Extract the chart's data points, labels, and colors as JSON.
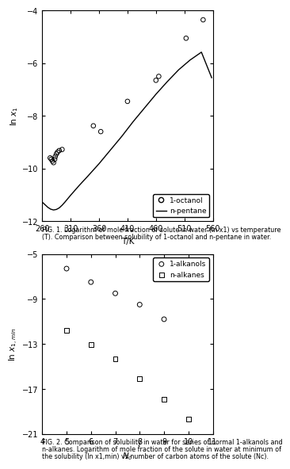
{
  "fig1": {
    "xlabel": "T/K",
    "ylabel": "ln x1",
    "xlim": [
      260,
      560
    ],
    "ylim": [
      -12,
      -4
    ],
    "xticks": [
      260,
      310,
      360,
      410,
      460,
      510,
      560
    ],
    "yticks": [
      -12,
      -10,
      -8,
      -6,
      -4
    ],
    "octanol_T": [
      274,
      276,
      278,
      280,
      282,
      283,
      285,
      287,
      290,
      295,
      350,
      363,
      410,
      460,
      465,
      513,
      543
    ],
    "octanol_lnx": [
      -9.6,
      -9.65,
      -9.72,
      -9.78,
      -9.65,
      -9.55,
      -9.45,
      -9.38,
      -9.32,
      -9.28,
      -8.38,
      -8.6,
      -7.45,
      -6.65,
      -6.5,
      -5.05,
      -4.35
    ],
    "pentane_T": [
      260,
      270,
      275,
      280,
      285,
      290,
      295,
      300,
      310,
      325,
      340,
      360,
      380,
      400,
      420,
      440,
      460,
      480,
      500,
      520,
      540,
      558
    ],
    "pentane_lnx": [
      -11.28,
      -11.48,
      -11.55,
      -11.58,
      -11.56,
      -11.5,
      -11.4,
      -11.28,
      -11.02,
      -10.65,
      -10.3,
      -9.82,
      -9.3,
      -8.78,
      -8.22,
      -7.7,
      -7.18,
      -6.7,
      -6.25,
      -5.88,
      -5.58,
      -6.55
    ],
    "legend_octanol": "1-octanol",
    "legend_pentane": "n-pentane",
    "caption1": "FIG. 1. Logarithm of mole fraction of solute in water (ln x1) vs temperature",
    "caption2": "(T). Comparison between solubility of 1-octanol and n-pentane in water."
  },
  "fig2": {
    "xlabel": "Nc",
    "ylabel": "ln x1,min",
    "xlim": [
      4,
      11
    ],
    "ylim": [
      -21,
      -5
    ],
    "xticks": [
      4,
      5,
      6,
      7,
      8,
      9,
      10,
      11
    ],
    "yticks": [
      -21,
      -17,
      -13,
      -9,
      -5
    ],
    "alkanol_N": [
      5,
      6,
      7,
      8,
      9
    ],
    "alkanol_lnx": [
      -6.3,
      -7.5,
      -8.5,
      -9.5,
      -10.8
    ],
    "alkane_N": [
      5,
      6,
      7,
      8,
      9,
      10
    ],
    "alkane_lnx": [
      -11.8,
      -13.05,
      -14.3,
      -16.1,
      -17.9,
      -19.7
    ],
    "legend_alkanol": "1-alkanols",
    "legend_alkane": "n-alkanes",
    "caption1": "FIG. 2. Comparison of solubility in water for series of normal 1-alkanols and",
    "caption2": "n-alkanes. Logarithm of mole fraction of the solute in water at minimum of",
    "caption3": "the solubility (ln x1,min) vs number of carbon atoms of the solute (Nc)."
  }
}
